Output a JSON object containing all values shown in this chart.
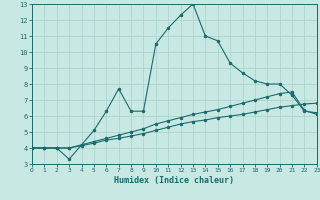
{
  "xlabel": "Humidex (Indice chaleur)",
  "bg_color": "#c8e8e4",
  "grid_color": "#a8d0cc",
  "line_color": "#1a6b6b",
  "xmin": 0,
  "xmax": 23,
  "ymin": 3,
  "ymax": 13,
  "line1_x": [
    0,
    1,
    2,
    3,
    4,
    5,
    6,
    7,
    8,
    9,
    10,
    11,
    12,
    13,
    14,
    15,
    16,
    17,
    18,
    19,
    20,
    21,
    22,
    23
  ],
  "line1_y": [
    4.0,
    4.0,
    4.0,
    4.0,
    4.15,
    4.3,
    4.5,
    4.6,
    4.75,
    4.9,
    5.1,
    5.3,
    5.5,
    5.65,
    5.75,
    5.9,
    6.0,
    6.1,
    6.25,
    6.4,
    6.55,
    6.65,
    6.75,
    6.8
  ],
  "line2_x": [
    0,
    1,
    2,
    3,
    4,
    5,
    6,
    7,
    8,
    9,
    10,
    11,
    12,
    13,
    14,
    15,
    16,
    17,
    18,
    19,
    20,
    21,
    22,
    23
  ],
  "line2_y": [
    4.0,
    4.0,
    4.0,
    3.3,
    4.2,
    5.1,
    6.3,
    7.7,
    6.3,
    6.3,
    10.5,
    11.5,
    12.3,
    13.0,
    11.0,
    10.7,
    9.3,
    8.7,
    8.2,
    8.0,
    8.0,
    7.3,
    6.3,
    6.2
  ],
  "line3_x": [
    0,
    1,
    2,
    3,
    4,
    5,
    6,
    7,
    8,
    9,
    10,
    11,
    12,
    13,
    14,
    15,
    16,
    17,
    18,
    19,
    20,
    21,
    22,
    23
  ],
  "line3_y": [
    4.0,
    4.0,
    4.0,
    4.0,
    4.2,
    4.4,
    4.6,
    4.8,
    5.0,
    5.2,
    5.5,
    5.7,
    5.9,
    6.1,
    6.25,
    6.4,
    6.6,
    6.8,
    7.0,
    7.2,
    7.4,
    7.5,
    6.35,
    6.1
  ]
}
